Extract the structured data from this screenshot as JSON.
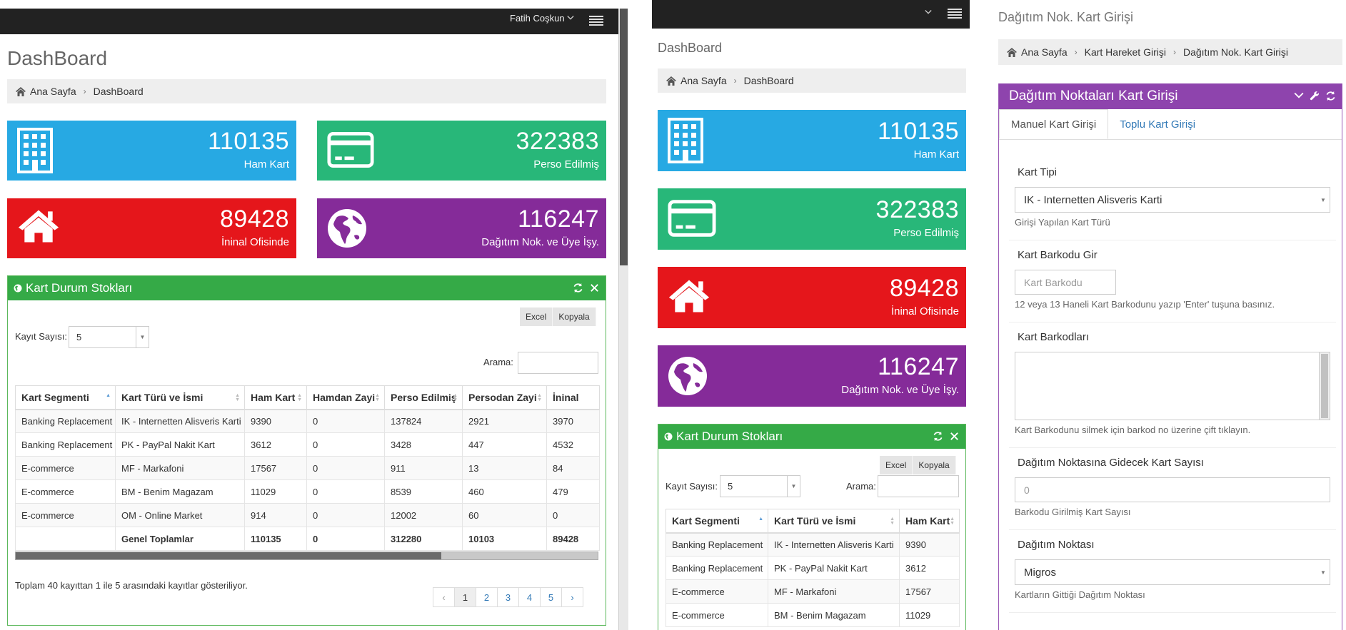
{
  "header": {
    "user_name": "Fatih Coşkun"
  },
  "dashboard": {
    "title": "DashBoard",
    "breadcrumb": [
      "Ana Sayfa",
      "DashBoard"
    ],
    "stats": [
      {
        "value": "110135",
        "label": "Ham Kart",
        "color": "#27a9e3",
        "icon": "building-icon"
      },
      {
        "value": "322383",
        "label": "Perso Edilmiş",
        "color": "#28b779",
        "icon": "credit-card-icon"
      },
      {
        "value": "89428",
        "label": "İninal Ofisinde",
        "color": "#e5161b",
        "icon": "home-icon"
      },
      {
        "value": "116247",
        "label": "Dağıtım Nok. ve Üye İşy.",
        "color": "#852b99",
        "icon": "globe-icon"
      }
    ],
    "portlet": {
      "title": "Kart Durum Stokları",
      "excel_label": "Excel",
      "copy_label": "Kopyala",
      "records_label": "Kayıt Sayısı:",
      "records_value": "5",
      "search_label": "Arama:",
      "columns": [
        "Kart Segmenti",
        "Kart Türü ve İsmi",
        "Ham Kart",
        "Hamdan Zayi",
        "Perso Edilmiş",
        "Persodan Zayi",
        "İninal"
      ],
      "rows": [
        [
          "Banking Replacement",
          "IK - Internetten Alisveris Karti",
          "9390",
          "0",
          "137824",
          "2921",
          "3970"
        ],
        [
          "Banking Replacement",
          "PK - PayPal Nakit Kart",
          "3612",
          "0",
          "3428",
          "447",
          "4532"
        ],
        [
          "E-commerce",
          "MF - Markafoni",
          "17567",
          "0",
          "911",
          "13",
          "84"
        ],
        [
          "E-commerce",
          "BM - Benim Magazam",
          "11029",
          "0",
          "8539",
          "460",
          "479"
        ],
        [
          "E-commerce",
          "OM - Online Market",
          "914",
          "0",
          "12002",
          "60",
          "0"
        ]
      ],
      "totals": [
        "",
        "Genel Toplamlar",
        "110135",
        "0",
        "312280",
        "10103",
        "89428"
      ],
      "info": "Toplam 40 kayıttan 1 ile 5 arasındaki kayıtlar gösteriliyor.",
      "pages": [
        "‹",
        "1",
        "2",
        "3",
        "4",
        "5",
        "›"
      ]
    }
  },
  "form": {
    "page_title": "Dağıtım Nok. Kart Girişi",
    "breadcrumb": [
      "Ana Sayfa",
      "Kart Hareket Girişi",
      "Dağıtım Nok. Kart Girişi"
    ],
    "portlet_title": "Dağıtım Noktaları Kart Girişi",
    "tabs": [
      "Manuel Kart Girişi",
      "Toplu Kart Girişi"
    ],
    "card_type_label": "Kart Tipi",
    "card_type_value": "IK - Internetten Alisveris Karti",
    "card_type_help": "Girişi Yapılan Kart Türü",
    "barcode_label": "Kart Barkodu Gir",
    "barcode_placeholder": "Kart Barkodu",
    "barcode_help": "12 veya 13 Haneli Kart Barkodunu yazıp 'Enter' tuşuna basınız.",
    "barcodes_label": "Kart Barkodları",
    "barcodes_help": "Kart Barkodunu silmek için barkod no üzerine çift tıklayın.",
    "count_label": "Dağıtım Noktasına Gidecek Kart Sayısı",
    "count_value": "0",
    "count_help": "Barkodu Girilmiş Kart Sayısı",
    "point_label": "Dağıtım Noktası",
    "point_value": "Migros",
    "point_help": "Kartların Gittiği Dağıtım Noktası"
  }
}
